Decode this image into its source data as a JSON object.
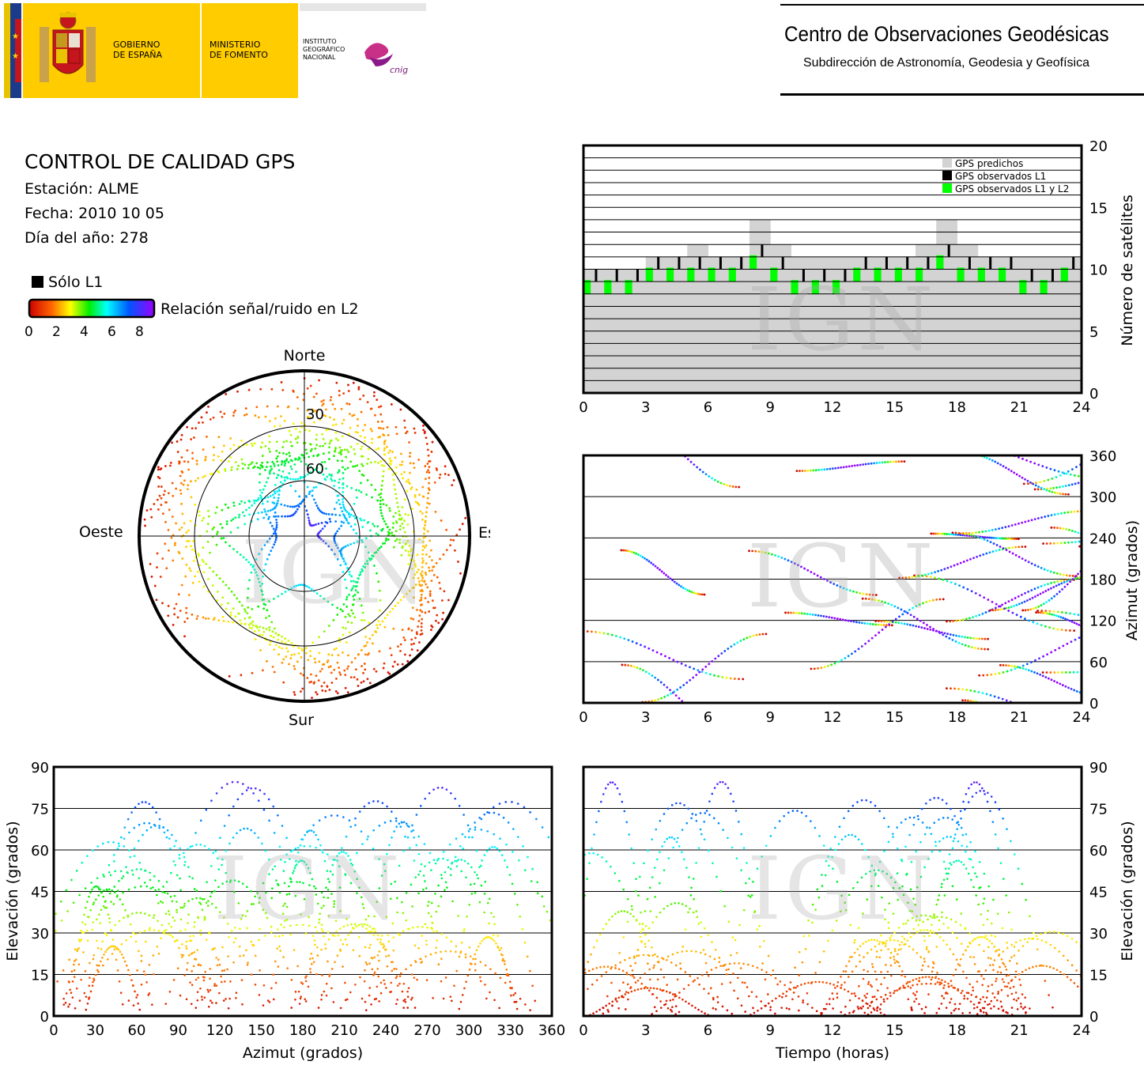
{
  "header": {
    "gov_line1": "GOBIERNO",
    "gov_line2": "DE ESPAÑA",
    "min_line1": "MINISTERIO",
    "min_line2": "DE FOMENTO",
    "inst_line1": "INSTITUTO",
    "inst_line2": "GEOGRÁFICO",
    "inst_line3": "NACIONAL",
    "cnig_logo_text": "cnig",
    "center_title": "Centro de Observaciones Geodésicas",
    "center_subtitle": "Subdirección de Astronomía, Geodesia y Geofísica"
  },
  "info": {
    "title": "CONTROL DE CALIDAD GPS",
    "station": "Estación: ALME",
    "date": "Fecha: 2010 10 05",
    "doy": "Día del año: 278"
  },
  "legend": {
    "l1_only": "Sólo L1",
    "snr_label": "Relación señal/ruido en L2",
    "snr_ticks": [
      "0",
      "2",
      "4",
      "6",
      "8"
    ],
    "gradient_colors": [
      "#cc0000",
      "#ff6600",
      "#ffff00",
      "#00ee00",
      "#00ffff",
      "#0055ff",
      "#9900ff"
    ]
  },
  "watermark": "IGN",
  "chart_data": [
    {
      "type": "scatter",
      "id": "skyplot",
      "direction_labels": [
        "Norte",
        "Sur",
        "Este",
        "Oeste"
      ],
      "elevation_rings": [
        0,
        30,
        60
      ],
      "elevation_ring_labels": [
        "30",
        "60"
      ]
    },
    {
      "type": "bar",
      "id": "satellite_count",
      "xlabel": "",
      "ylabel": "Número de satélites",
      "xlim": [
        0,
        24
      ],
      "ylim": [
        0,
        20
      ],
      "xticks": [
        "0",
        "3",
        "6",
        "9",
        "12",
        "15",
        "18",
        "21",
        "24"
      ],
      "yticks": [
        "0",
        "5",
        "10",
        "15",
        "20"
      ],
      "legend": [
        "GPS predichos",
        "GPS observados L1",
        "GPS observados L1 y L2"
      ],
      "legend_colors": [
        "#d3d3d3",
        "#000000",
        "#00ff00"
      ],
      "hours": [
        0,
        1,
        2,
        3,
        4,
        5,
        6,
        7,
        8,
        9,
        10,
        11,
        12,
        13,
        14,
        15,
        16,
        17,
        18,
        19,
        20,
        21,
        22,
        23
      ],
      "predicted": [
        10,
        10,
        10,
        11,
        11,
        12,
        11,
        11,
        14,
        12,
        11,
        11,
        11,
        11,
        11,
        11,
        12,
        14,
        12,
        11,
        11,
        11,
        11,
        11
      ],
      "observed_l1_l2": [
        9,
        9,
        9,
        10,
        10,
        10,
        10,
        10,
        11,
        10,
        9,
        9,
        9,
        10,
        10,
        10,
        10,
        11,
        10,
        10,
        10,
        9,
        9,
        10
      ]
    },
    {
      "type": "scatter",
      "id": "azimuth_vs_time",
      "xlabel": "",
      "ylabel": "Azimut (grados)",
      "xlim": [
        0,
        24
      ],
      "ylim": [
        0,
        360
      ],
      "xticks": [
        "0",
        "3",
        "6",
        "9",
        "12",
        "15",
        "18",
        "21",
        "24"
      ],
      "yticks": [
        "0",
        "60",
        "120",
        "180",
        "240",
        "300",
        "360"
      ]
    },
    {
      "type": "scatter",
      "id": "elevation_vs_azimuth",
      "xlabel": "Azimut (grados)",
      "ylabel": "Elevación (grados)",
      "xlim": [
        0,
        360
      ],
      "ylim": [
        0,
        90
      ],
      "xticks": [
        "0",
        "30",
        "60",
        "90",
        "120",
        "150",
        "180",
        "210",
        "240",
        "270",
        "300",
        "330",
        "360"
      ],
      "yticks": [
        "0",
        "15",
        "30",
        "45",
        "60",
        "75",
        "90"
      ]
    },
    {
      "type": "scatter",
      "id": "elevation_vs_time",
      "xlabel": "Tiempo (horas)",
      "ylabel": "Elevación (grados)",
      "xlim": [
        0,
        24
      ],
      "ylim": [
        0,
        90
      ],
      "xticks": [
        "0",
        "3",
        "6",
        "9",
        "12",
        "15",
        "18",
        "21",
        "24"
      ],
      "yticks": [
        "0",
        "15",
        "30",
        "45",
        "60",
        "75",
        "90"
      ]
    }
  ]
}
